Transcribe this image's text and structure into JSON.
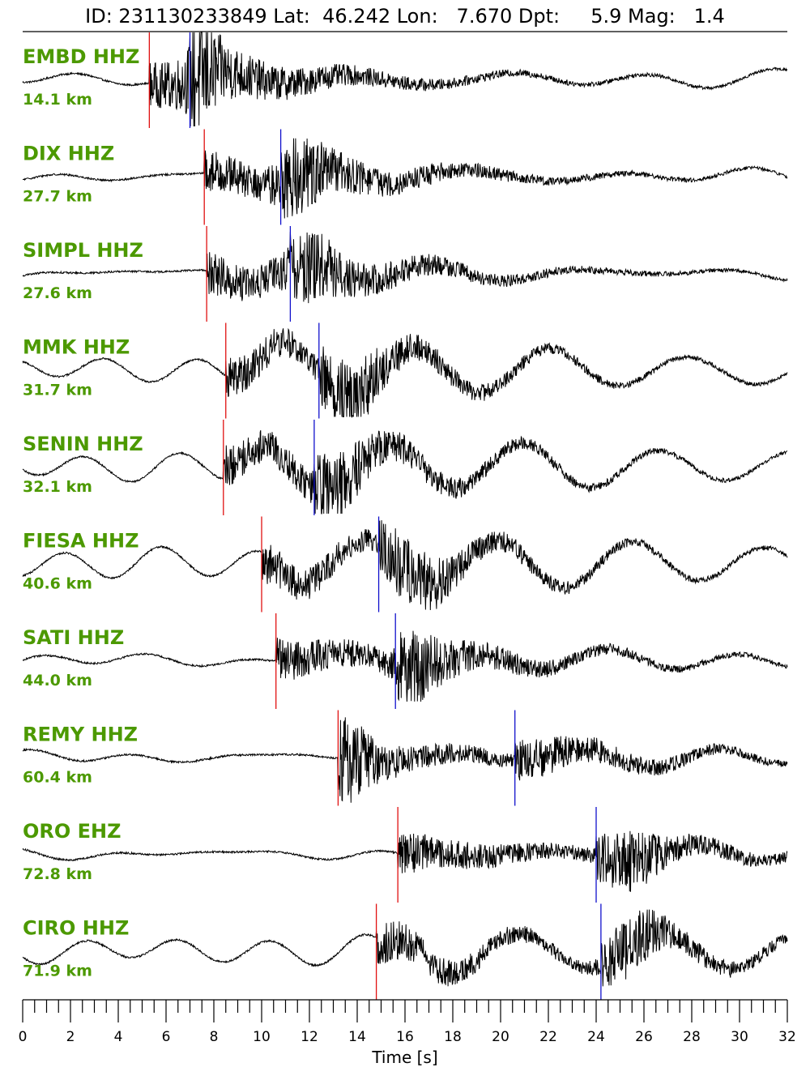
{
  "title": "ID: 231130233849 Lat:  46.242 Lon:   7.670 Dpt:     5.9 Mag:   1.4",
  "colors": {
    "trace": "#000000",
    "label": "#4c9900",
    "p_pick": "#e01010",
    "s_pick": "#1010cc",
    "axis": "#000000"
  },
  "chart_data": {
    "type": "line",
    "xlabel": "Time [s]",
    "xlim": [
      0,
      32
    ],
    "x_tick_labels": [
      "0",
      "2",
      "4",
      "6",
      "8",
      "10",
      "12",
      "14",
      "16",
      "18",
      "20",
      "22",
      "24",
      "26",
      "28",
      "30",
      "32"
    ],
    "x_major_ticks": [
      0,
      2,
      4,
      6,
      8,
      10,
      12,
      14,
      16,
      18,
      20,
      22,
      24,
      26,
      28,
      30,
      32
    ],
    "x_minor_step": 0.5,
    "traces": [
      {
        "station": "EMBD HHZ",
        "distance": "14.1 km",
        "p_pick": 5.3,
        "s_pick": 7.0,
        "peak_at": 7.4,
        "style": "impulsive"
      },
      {
        "station": "DIX HHZ",
        "distance": "27.7 km",
        "p_pick": 7.6,
        "s_pick": 10.8,
        "peak_at": 11.5,
        "style": "emergent"
      },
      {
        "station": "SIMPL HHZ",
        "distance": "27.6 km",
        "p_pick": 7.7,
        "s_pick": 11.2,
        "peak_at": 11.9,
        "style": "emergent"
      },
      {
        "station": "MMK HHZ",
        "distance": "31.7 km",
        "p_pick": 8.5,
        "s_pick": 12.4,
        "peak_at": 14.0,
        "style": "long-period"
      },
      {
        "station": "SENIN HHZ",
        "distance": "32.1 km",
        "p_pick": 8.4,
        "s_pick": 12.2,
        "peak_at": 13.0,
        "style": "long-period"
      },
      {
        "station": "FIESA HHZ",
        "distance": "40.6 km",
        "p_pick": 10.0,
        "s_pick": 14.9,
        "peak_at": 16.5,
        "style": "long-period"
      },
      {
        "station": "SATI HHZ",
        "distance": "44.0 km",
        "p_pick": 10.6,
        "s_pick": 15.6,
        "peak_at": 16.5,
        "style": "noisy"
      },
      {
        "station": "REMY HHZ",
        "distance": "60.4 km",
        "p_pick": 13.2,
        "s_pick": 20.6,
        "peak_at": 13.6,
        "style": "impulsive"
      },
      {
        "station": "ORO EHZ",
        "distance": "72.8 km",
        "p_pick": 15.7,
        "s_pick": 24.0,
        "peak_at": 25.5,
        "style": "noisy"
      },
      {
        "station": "CIRO HHZ",
        "distance": "71.9 km",
        "p_pick": 14.8,
        "s_pick": 24.2,
        "peak_at": 25.5,
        "style": "long-period"
      }
    ]
  }
}
